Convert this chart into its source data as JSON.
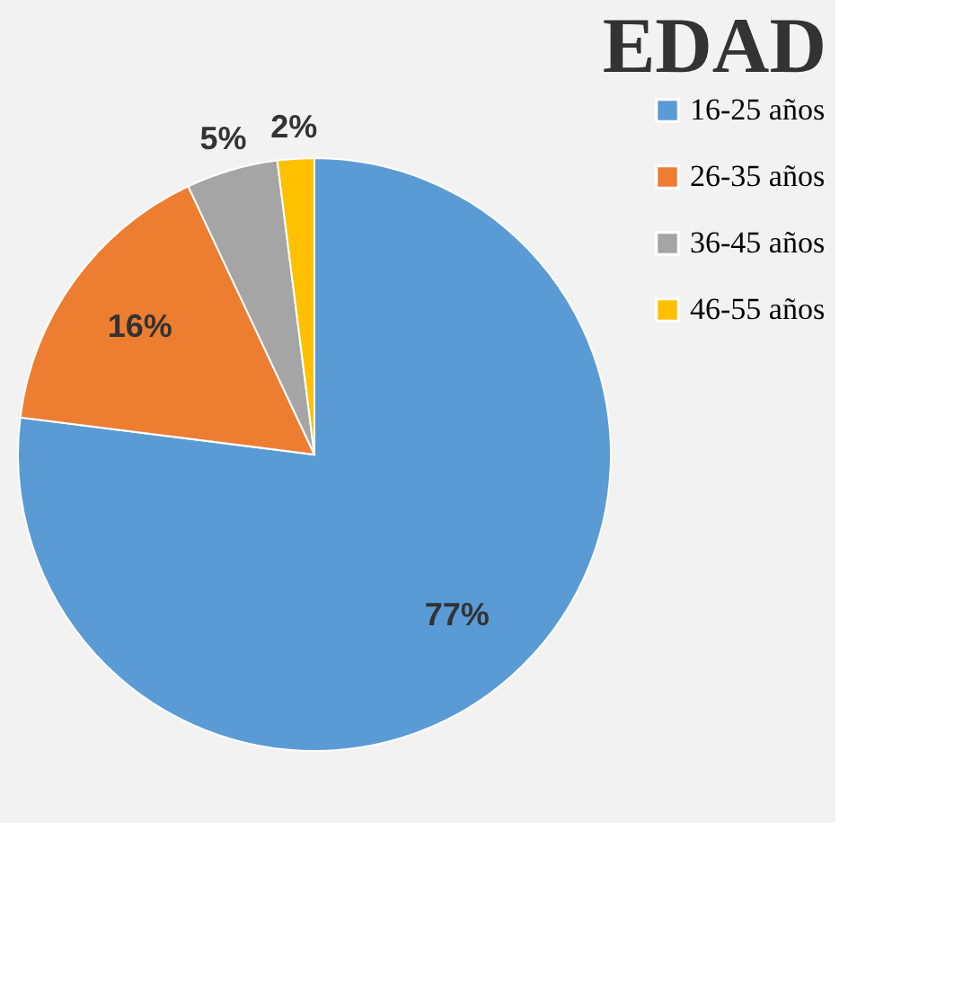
{
  "chart_data": {
    "type": "pie",
    "title": "EDAD",
    "categories": [
      "16-25 años",
      "26-35 años",
      "36-45 años",
      "46-55 años"
    ],
    "values": [
      77,
      16,
      5,
      2
    ],
    "colors": [
      "#5b9bd5",
      "#ed7d31",
      "#a5a5a5",
      "#ffc000"
    ],
    "value_labels": [
      "77%",
      "16%",
      "5%",
      "2%"
    ],
    "legend": "right"
  }
}
